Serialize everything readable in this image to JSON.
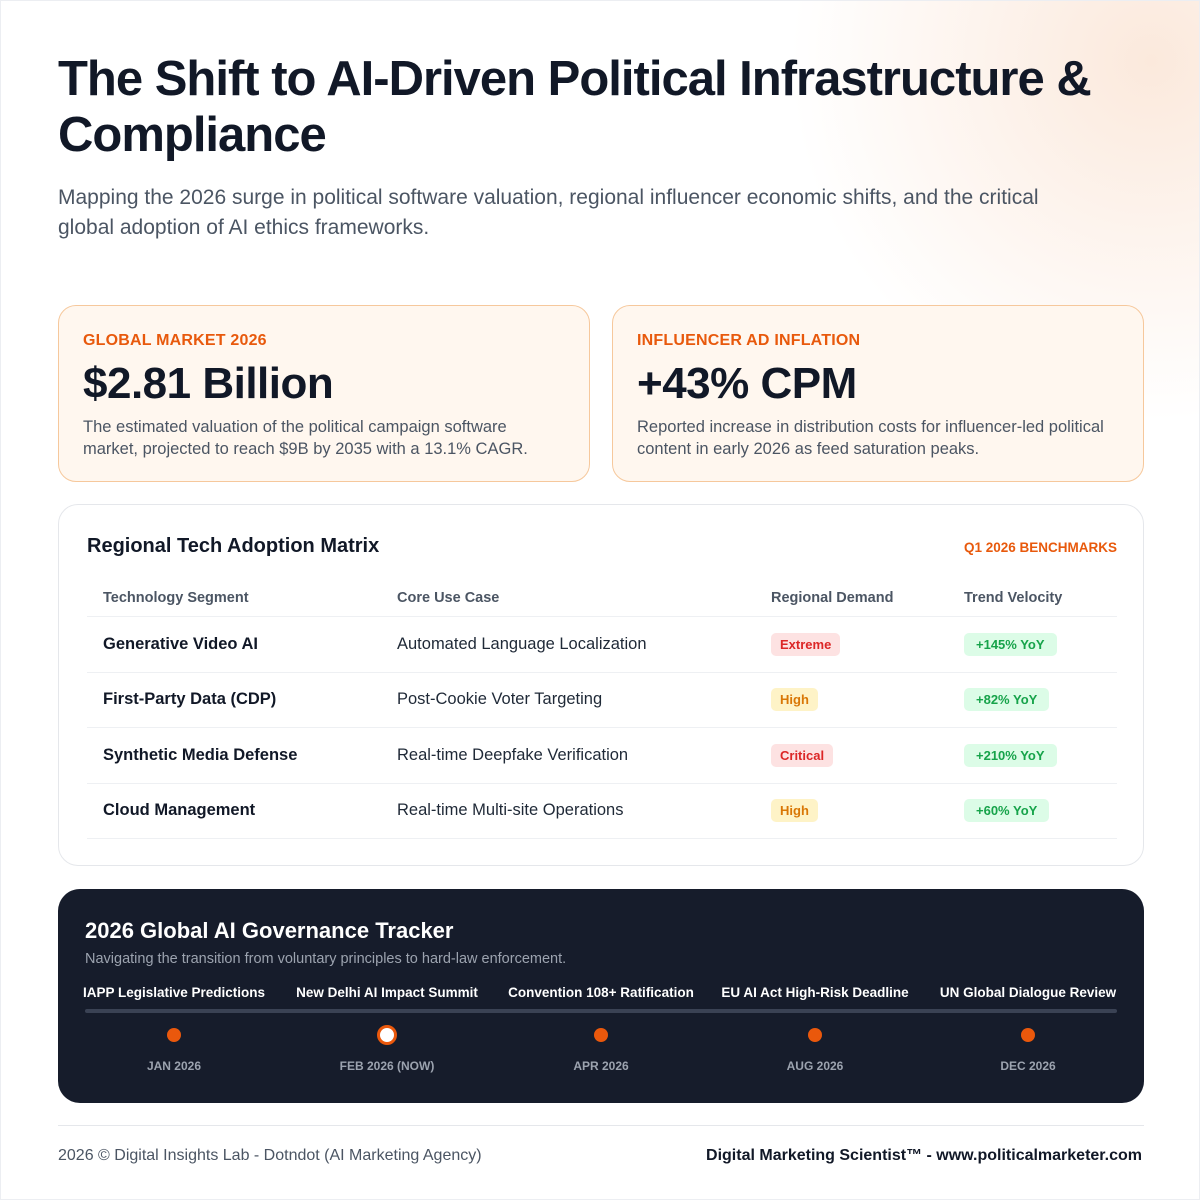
{
  "header": {
    "title": "The Shift to AI-Driven Political Infrastructure & Compliance",
    "subtitle": "Mapping the 2026 surge in political software valuation, regional influencer economic shifts, and the critical global adoption of AI ethics frameworks."
  },
  "stats": [
    {
      "label": "GLOBAL MARKET 2026",
      "value": "$2.81 Billion",
      "description": "The estimated valuation of the political campaign software market, projected to reach $9B by 2035 with a 13.1% CAGR."
    },
    {
      "label": "INFLUENCER AD INFLATION",
      "value": "+43% CPM",
      "description": "Reported increase in distribution costs for influencer-led political content in early 2026 as feed saturation peaks."
    }
  ],
  "matrix": {
    "title": "Regional Tech Adoption Matrix",
    "badge": "Q1 2026 BENCHMARKS",
    "columns": [
      "Technology Segment",
      "Core Use Case",
      "Regional Demand",
      "Trend Velocity"
    ],
    "rows": [
      {
        "segment": "Generative Video AI",
        "use_case": "Automated Language Localization",
        "demand": "Extreme",
        "velocity": "+145% YoY"
      },
      {
        "segment": "First-Party Data (CDP)",
        "use_case": "Post-Cookie Voter Targeting",
        "demand": "High",
        "velocity": "+82% YoY"
      },
      {
        "segment": "Synthetic Media Defense",
        "use_case": "Real-time Deepfake Verification",
        "demand": "Critical",
        "velocity": "+210% YoY"
      },
      {
        "segment": "Cloud Management",
        "use_case": "Real-time Multi-site Operations",
        "demand": "High",
        "velocity": "+60% YoY"
      }
    ],
    "colors": {
      "extreme": "#dc2626",
      "critical": "#dc2626",
      "high": "#d97706",
      "velocity": "#16a34a"
    }
  },
  "tracker": {
    "title": "2026 Global AI Governance Tracker",
    "subtitle": "Navigating the transition from voluntary principles to hard-law enforcement.",
    "milestones": [
      {
        "label": "IAPP Legislative Predictions",
        "date": "JAN 2026",
        "current": false
      },
      {
        "label": "New Delhi AI Impact Summit",
        "date": "FEB 2026 (NOW)",
        "current": true
      },
      {
        "label": "Convention 108+ Ratification",
        "date": "APR 2026",
        "current": false
      },
      {
        "label": "EU AI Act High-Risk Deadline",
        "date": "AUG 2026",
        "current": false
      },
      {
        "label": "UN Global Dialogue Review",
        "date": "DEC 2026",
        "current": false
      }
    ],
    "accent_color": "#ea580c"
  },
  "footer": {
    "left": "2026 © Digital Insights Lab - Dotndot (AI Marketing Agency)",
    "right": "Digital Marketing Scientist™ - www.politicalmarketer.com"
  }
}
